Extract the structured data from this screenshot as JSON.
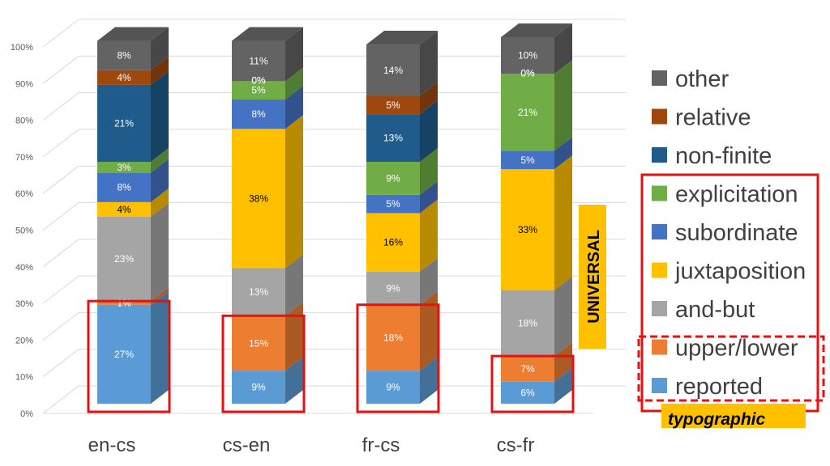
{
  "chart_data": {
    "type": "bar",
    "stacked": true,
    "percent_stacked": true,
    "three_d": true,
    "categories": [
      "en-cs",
      "cs-en",
      "fr-cs",
      "cs-fr"
    ],
    "ylim": [
      0,
      100
    ],
    "yticks": [
      "0%",
      "10%",
      "20%",
      "30%",
      "40%",
      "50%",
      "60%",
      "70%",
      "80%",
      "90%",
      "100%"
    ],
    "grid": true,
    "legend_position": "right",
    "series": [
      {
        "name": "reported",
        "color": "#5B9BD5",
        "label_color": "#ffffff",
        "values": [
          27,
          9,
          9,
          6
        ],
        "labels": [
          "27%",
          "9%",
          "9%",
          "6%"
        ]
      },
      {
        "name": "upper/lower",
        "color": "#ED7D31",
        "label_color": "#ffffff",
        "values": [
          1,
          15,
          18,
          7
        ],
        "labels": [
          "1%",
          "15%",
          "18%",
          "7%"
        ]
      },
      {
        "name": "and-but",
        "color": "#A5A5A5",
        "label_color": "#ffffff",
        "values": [
          23,
          13,
          9,
          18
        ],
        "labels": [
          "23%",
          "13%",
          "9%",
          "18%"
        ]
      },
      {
        "name": "juxtaposition",
        "color": "#FFC000",
        "label_color": "#000000",
        "values": [
          4,
          38,
          16,
          33
        ],
        "labels": [
          "4%",
          "38%",
          "16%",
          "33%"
        ]
      },
      {
        "name": "subordinate",
        "color": "#4472C4",
        "label_color": "#ffffff",
        "values": [
          8,
          8,
          5,
          5
        ],
        "labels": [
          "8%",
          "8%",
          "5%",
          "5%"
        ]
      },
      {
        "name": "explicitation",
        "color": "#70AD47",
        "label_color": "#ffffff",
        "values": [
          3,
          5,
          9,
          21
        ],
        "labels": [
          "3%",
          "5%",
          "9%",
          "21%"
        ]
      },
      {
        "name": "non-finite",
        "color": "#1F5C8B",
        "label_color": "#ffffff",
        "values": [
          21,
          0,
          13,
          0
        ],
        "labels": [
          "21%",
          "0%",
          "13%",
          "0%"
        ]
      },
      {
        "name": "relative",
        "color": "#9E480E",
        "label_color": "#ffffff",
        "values": [
          4,
          0,
          5,
          0
        ],
        "labels": [
          "4%",
          "0%",
          "5%",
          "0%"
        ]
      },
      {
        "name": "other",
        "color": "#636363",
        "label_color": "#ffffff",
        "values": [
          8,
          11,
          14,
          10
        ],
        "labels": [
          "8%",
          "11%",
          "14%",
          "10%"
        ]
      }
    ],
    "highlight_boxes": [
      {
        "category": "en-cs",
        "top_value": 28
      },
      {
        "category": "cs-en",
        "top_value": 24
      },
      {
        "category": "fr-cs",
        "top_value": 27
      },
      {
        "category": "cs-fr",
        "top_value": 13
      }
    ],
    "annotations": {
      "universal": "UNIVERSAL",
      "typographic": "typographic"
    },
    "annotation_colors": {
      "box": "#E81010",
      "highlight": "#FFC000"
    }
  }
}
